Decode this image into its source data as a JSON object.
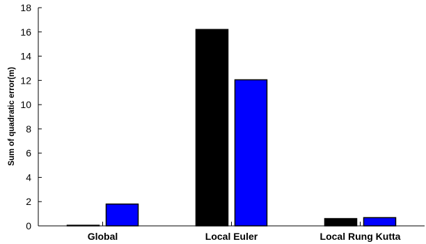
{
  "chart_data": {
    "type": "bar",
    "title": "",
    "xlabel": "",
    "ylabel": "Sum of quadratic error(m)",
    "categories": [
      "Global",
      "Local Euler",
      "Local Rung Kutta"
    ],
    "series": [
      {
        "values": [
          0.05,
          16.2,
          0.6
        ],
        "color": "#000000"
      },
      {
        "values": [
          1.8,
          12.05,
          0.68
        ],
        "color": "#0000ff"
      }
    ],
    "ylim": [
      0,
      18
    ],
    "yticks": [
      0,
      2,
      4,
      6,
      8,
      10,
      12,
      14,
      16,
      18
    ],
    "grid": false,
    "legend": "none"
  }
}
